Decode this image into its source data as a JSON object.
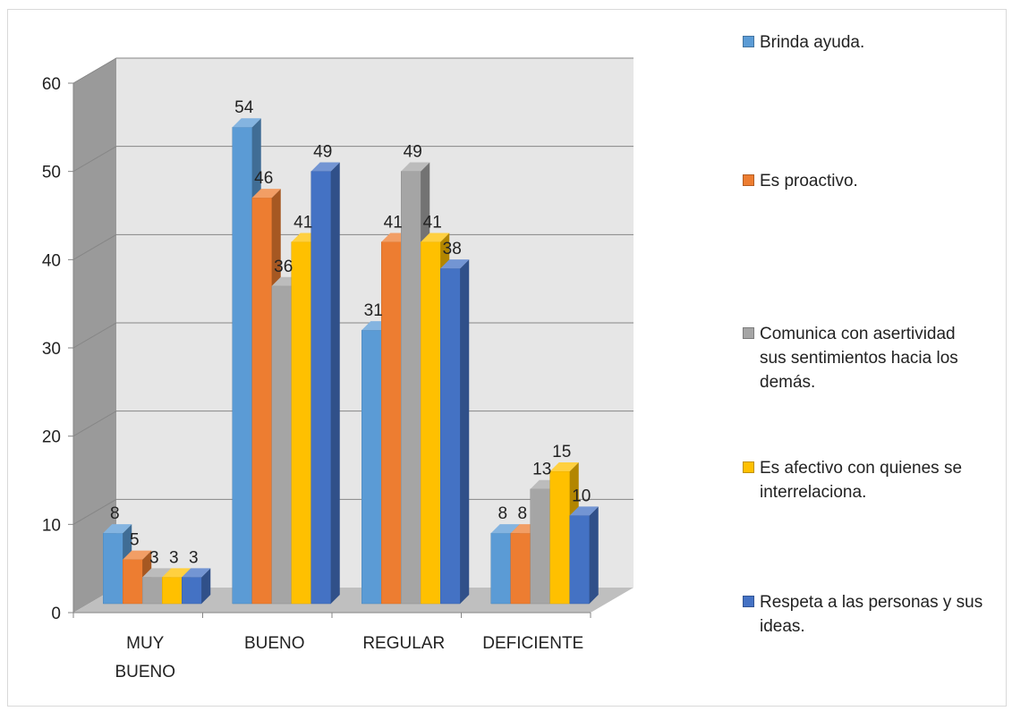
{
  "chart_data": {
    "type": "bar",
    "title": "",
    "xlabel": "",
    "ylabel": "",
    "ylim": [
      0,
      60
    ],
    "yticks": [
      0,
      10,
      20,
      30,
      40,
      50,
      60
    ],
    "grid": true,
    "style": "3d-clustered-column",
    "legend_position": "right",
    "categories": [
      "MUY BUENO",
      "BUENO",
      "REGULAR",
      "DEFICIENTE"
    ],
    "series": [
      {
        "name": "Brinda ayuda.",
        "color": "#5b9bd5",
        "values": [
          8,
          54,
          31,
          8
        ]
      },
      {
        "name": "Es proactivo.",
        "color": "#ed7d31",
        "values": [
          5,
          46,
          41,
          8
        ]
      },
      {
        "name": "Comunica con asertividad sus sentimientos hacia los demás.",
        "color": "#a5a5a5",
        "values": [
          3,
          36,
          49,
          13
        ]
      },
      {
        "name": "Es afectivo con quienes se interrelaciona.",
        "color": "#ffc000",
        "values": [
          3,
          41,
          41,
          15
        ]
      },
      {
        "name": "Respeta a las personas y sus ideas.",
        "color": "#4472c4",
        "values": [
          3,
          49,
          38,
          10
        ]
      }
    ]
  }
}
